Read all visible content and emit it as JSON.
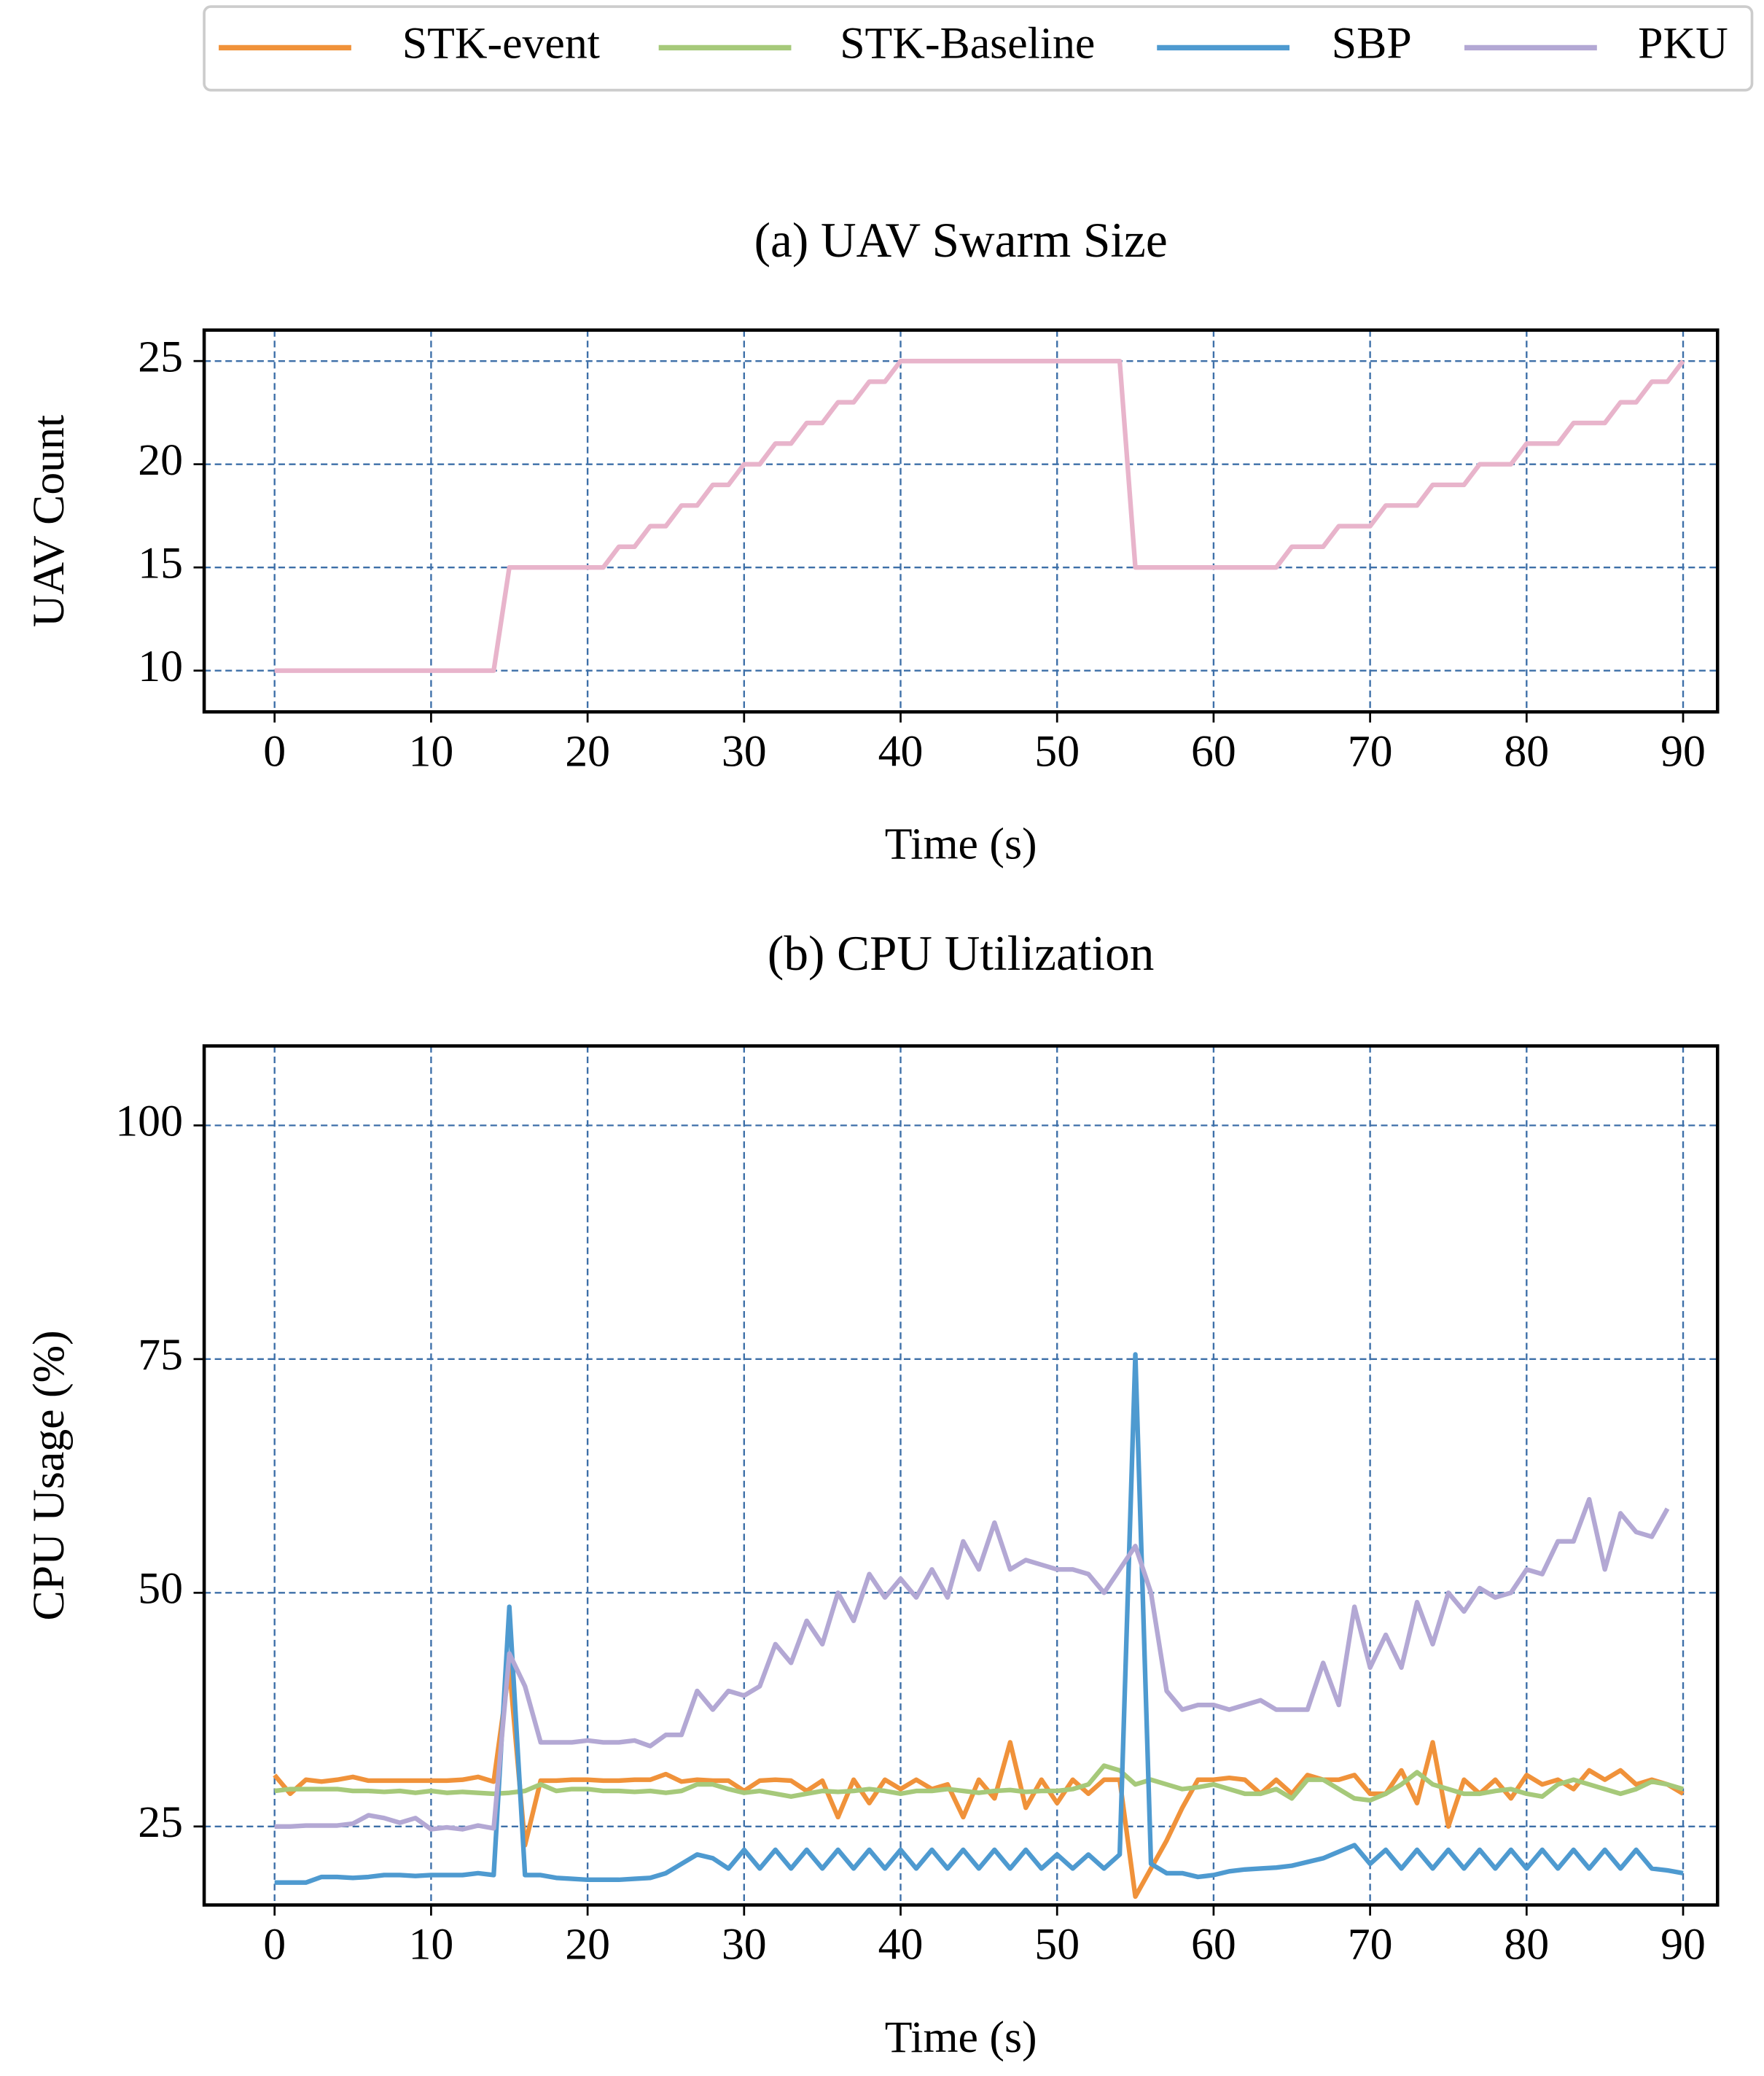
{
  "chart_data": [
    {
      "type": "line",
      "title": "(a) UAV Swarm Size",
      "x_label": "Time (s)",
      "y_label": "UAV Count",
      "x": [
        0,
        1,
        2,
        3,
        4,
        5,
        6,
        7,
        8,
        9,
        10,
        11,
        12,
        13,
        14,
        15,
        16,
        17,
        18,
        19,
        20,
        21,
        22,
        23,
        24,
        25,
        26,
        27,
        28,
        29,
        30,
        31,
        32,
        33,
        34,
        35,
        36,
        37,
        38,
        39,
        40,
        41,
        42,
        43,
        44,
        45,
        46,
        47,
        48,
        49,
        50,
        51,
        52,
        53,
        54,
        55,
        56,
        57,
        58,
        59,
        60,
        61,
        62,
        63,
        64,
        65,
        66,
        67,
        68,
        69,
        70,
        71,
        72,
        73,
        74,
        75,
        76,
        77,
        78,
        79,
        80,
        81,
        82,
        83,
        84,
        85,
        86,
        87,
        88,
        89,
        90
      ],
      "series": [
        {
          "color": "#e8b4cb",
          "values": [
            10,
            10,
            10,
            10,
            10,
            10,
            10,
            10,
            10,
            10,
            10,
            10,
            10,
            10,
            10,
            15,
            15,
            15,
            15,
            15,
            15,
            15,
            16,
            16,
            17,
            17,
            18,
            18,
            19,
            19,
            20,
            20,
            21,
            21,
            22,
            22,
            23,
            23,
            24,
            24,
            25,
            25,
            25,
            25,
            25,
            25,
            25,
            25,
            25,
            25,
            25,
            25,
            25,
            25,
            25,
            15,
            15,
            15,
            15,
            15,
            15,
            15,
            15,
            15,
            15,
            16,
            16,
            16,
            17,
            17,
            17,
            18,
            18,
            18,
            19,
            19,
            19,
            20,
            20,
            20,
            21,
            21,
            21,
            22,
            22,
            22,
            23,
            23,
            24,
            24,
            25
          ]
        }
      ],
      "xlim": [
        -4.5,
        92.2
      ],
      "xticks": [
        0,
        10,
        20,
        30,
        40,
        50,
        60,
        70,
        80,
        90
      ],
      "ylim": [
        8,
        26.5
      ],
      "yticks": [
        10,
        15,
        20,
        25
      ],
      "grid": true
    },
    {
      "type": "line",
      "title": "(b) CPU Utilization",
      "x_label": "Time (s)",
      "y_label": "CPU Usage (%)",
      "x": [
        0,
        1,
        2,
        3,
        4,
        5,
        6,
        7,
        8,
        9,
        10,
        11,
        12,
        13,
        14,
        15,
        16,
        17,
        18,
        19,
        20,
        21,
        22,
        23,
        24,
        25,
        26,
        27,
        28,
        29,
        30,
        31,
        32,
        33,
        34,
        35,
        36,
        37,
        38,
        39,
        40,
        41,
        42,
        43,
        44,
        45,
        46,
        47,
        48,
        49,
        50,
        51,
        52,
        53,
        54,
        55,
        56,
        57,
        58,
        59,
        60,
        61,
        62,
        63,
        64,
        65,
        66,
        67,
        68,
        69,
        70,
        71,
        72,
        73,
        74,
        75,
        76,
        77,
        78,
        79,
        80,
        81,
        82,
        83,
        84,
        85,
        86,
        87,
        88,
        89,
        90
      ],
      "series": [
        {
          "name": "STK-event",
          "color": "#f0923a",
          "values": [
            30.5,
            28.5,
            30,
            29.8,
            30,
            30.3,
            29.9,
            29.9,
            29.9,
            29.9,
            29.9,
            29.9,
            30,
            30.3,
            29.8,
            42,
            23,
            29.9,
            29.9,
            30,
            30,
            29.9,
            29.9,
            30,
            30,
            30.6,
            29.8,
            30,
            29.9,
            29.9,
            28.8,
            29.9,
            30,
            29.9,
            28.8,
            29.9,
            26,
            30,
            27.5,
            30,
            29,
            30,
            29,
            29.5,
            26,
            30,
            28,
            34,
            27,
            30,
            27.5,
            30,
            28.5,
            30,
            30,
            17.5,
            20.5,
            23.5,
            27,
            30,
            30,
            30.2,
            30,
            28.5,
            30,
            28.5,
            30.5,
            30,
            30,
            30.5,
            28.5,
            28.5,
            31,
            27.5,
            34,
            25,
            30,
            28.5,
            30,
            28,
            30.5,
            29.5,
            30,
            29,
            31,
            30,
            31,
            29.5,
            30,
            29.5,
            28.5
          ]
        },
        {
          "name": "STK-Baseline",
          "color": "#a6c97a",
          "values": [
            28.8,
            29,
            29,
            29,
            29,
            28.8,
            28.8,
            28.7,
            28.8,
            28.6,
            28.8,
            28.6,
            28.7,
            28.6,
            28.5,
            28.6,
            28.8,
            29.5,
            28.8,
            29,
            29,
            28.8,
            28.8,
            28.7,
            28.8,
            28.6,
            28.8,
            29.5,
            29.5,
            29,
            28.6,
            28.8,
            28.5,
            28.2,
            28.5,
            28.8,
            28.7,
            28.8,
            29,
            28.8,
            28.5,
            28.8,
            28.8,
            29,
            28.8,
            28.6,
            28.8,
            28.9,
            28.7,
            28.8,
            28.8,
            29,
            29.5,
            31.5,
            31,
            29.5,
            30,
            29.5,
            29,
            29.2,
            29.5,
            29,
            28.5,
            28.5,
            29,
            28,
            30,
            30,
            29,
            28,
            27.8,
            28.5,
            29.5,
            30.8,
            29.5,
            29,
            28.5,
            28.5,
            28.8,
            29,
            28.5,
            28.2,
            29.5,
            30,
            29.5,
            29,
            28.5,
            29,
            29.8,
            29.5,
            29
          ]
        },
        {
          "name": "SBP",
          "color": "#4e9ad0",
          "values": [
            19,
            19,
            19,
            19.6,
            19.6,
            19.5,
            19.6,
            19.8,
            19.8,
            19.7,
            19.8,
            19.8,
            19.8,
            20,
            19.8,
            48.5,
            19.8,
            19.8,
            19.5,
            19.4,
            19.3,
            19.3,
            19.3,
            19.4,
            19.5,
            20,
            21,
            22,
            21.6,
            20.5,
            22.5,
            20.5,
            22.5,
            20.5,
            22.5,
            20.5,
            22.5,
            20.5,
            22.5,
            20.5,
            22.5,
            20.5,
            22.5,
            20.5,
            22.5,
            20.5,
            22.5,
            20.5,
            22.5,
            20.5,
            22,
            20.5,
            22,
            20.5,
            22,
            75.5,
            21,
            20,
            20,
            19.6,
            19.8,
            20.2,
            20.4,
            20.5,
            20.6,
            20.8,
            21.2,
            21.6,
            22.3,
            23,
            21,
            22.5,
            20.5,
            22.5,
            20.5,
            22.5,
            20.5,
            22.5,
            20.5,
            22.5,
            20.5,
            22.5,
            20.5,
            22.5,
            20.5,
            22.5,
            20.5,
            22.5,
            20.5,
            20.3,
            20
          ]
        },
        {
          "name": "PKU",
          "color": "#b3a8d4",
          "values": [
            25,
            25,
            25.1,
            25.1,
            25.1,
            25.3,
            26.2,
            25.9,
            25.4,
            25.9,
            24.7,
            24.9,
            24.7,
            25.1,
            24.8,
            43.5,
            40,
            34,
            34,
            34,
            34.2,
            34,
            34,
            34.2,
            33.6,
            34.8,
            34.8,
            39.5,
            37.5,
            39.5,
            39,
            40,
            44.5,
            42.5,
            47,
            44.5,
            50,
            47,
            52,
            49.5,
            51.5,
            49.5,
            52.5,
            49.5,
            55.5,
            52.5,
            57.5,
            52.5,
            53.5,
            53,
            52.5,
            52.5,
            52,
            50,
            52.5,
            55,
            50,
            39.5,
            37.5,
            38,
            38,
            37.5,
            38,
            38.5,
            37.5,
            37.5,
            37.5,
            42.5,
            38,
            48.5,
            42,
            45.5,
            42,
            49,
            44.5,
            50,
            48,
            50.5,
            49.5,
            50,
            52.5,
            52,
            55.5,
            55.5,
            60,
            52.5,
            58.5,
            56.5,
            56,
            59,
            null
          ]
        }
      ],
      "xlim": [
        -4.5,
        92.2
      ],
      "xticks": [
        0,
        10,
        20,
        30,
        40,
        50,
        60,
        70,
        80,
        90
      ],
      "ylim": [
        16.6,
        108.5
      ],
      "yticks": [
        25,
        50,
        75,
        100
      ],
      "grid": true
    }
  ]
}
